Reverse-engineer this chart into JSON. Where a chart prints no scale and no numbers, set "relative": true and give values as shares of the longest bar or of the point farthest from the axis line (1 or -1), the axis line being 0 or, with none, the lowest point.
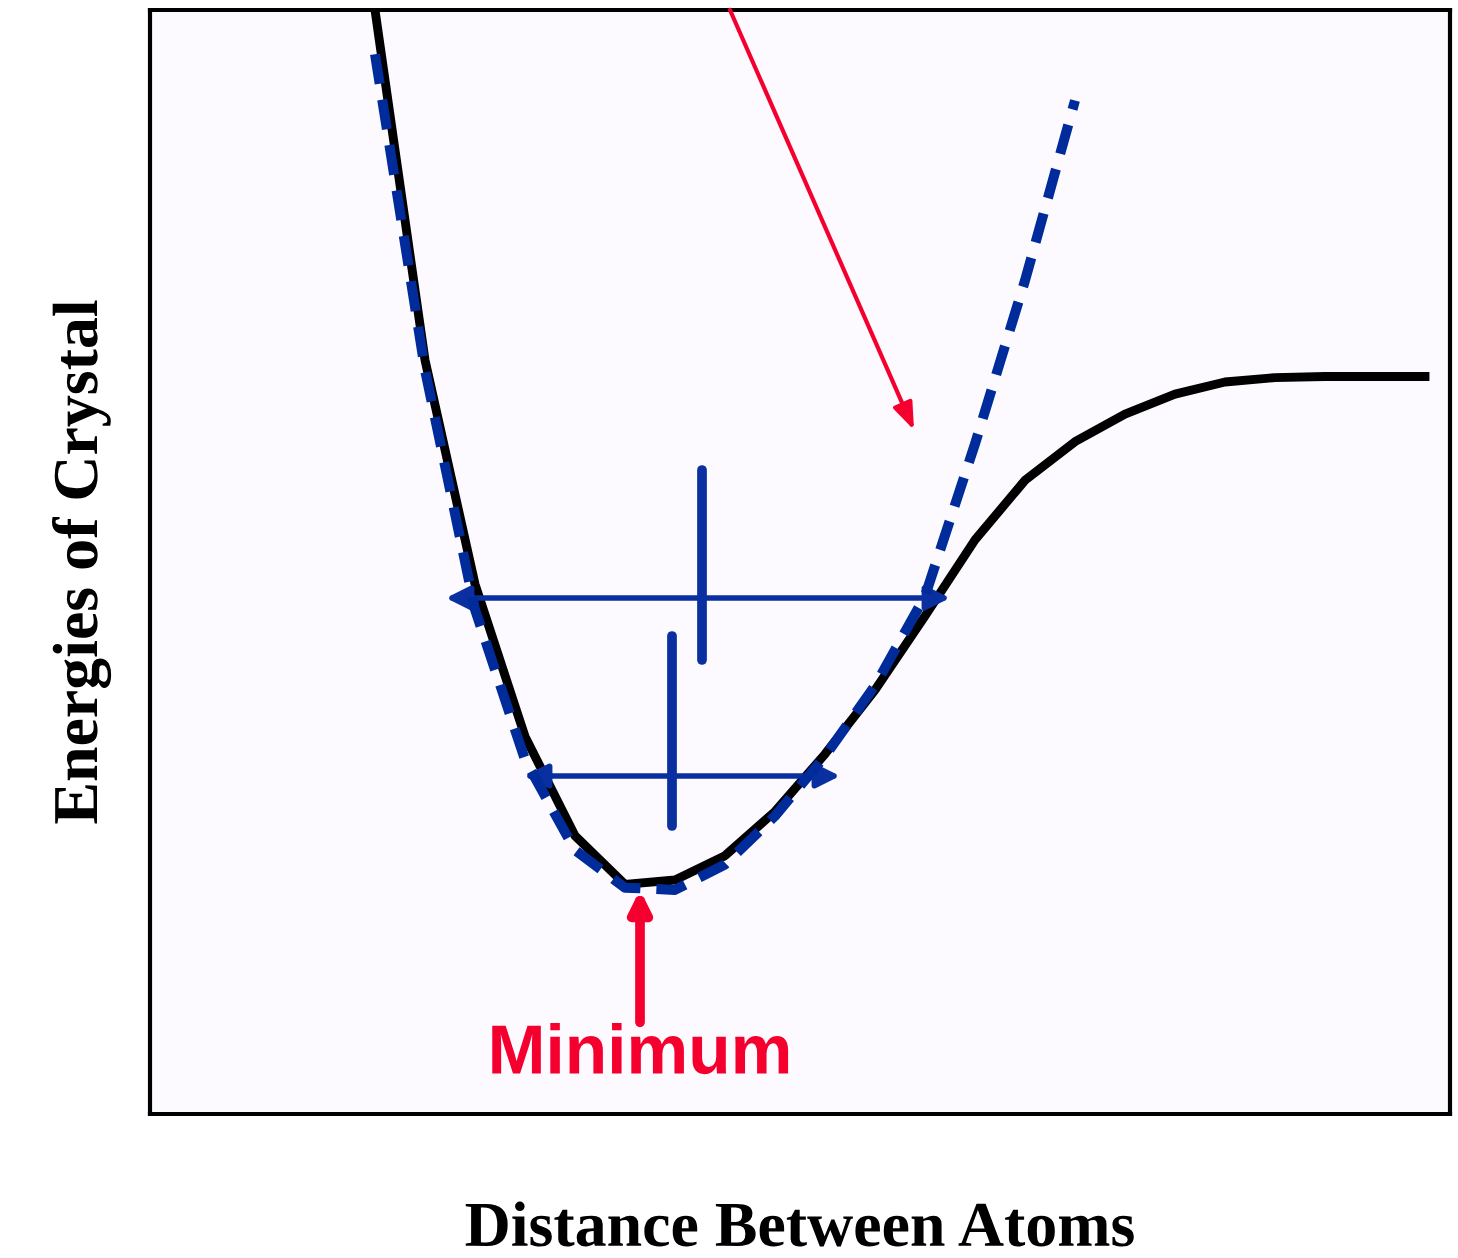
{
  "chart_data": {
    "type": "line",
    "relative": true,
    "xlabel": "Distance Between Atoms",
    "ylabel": "Energies of Crystal",
    "categories": [
      null,
      null,
      null,
      null,
      null,
      null,
      null,
      null,
      null,
      null,
      null,
      null,
      null,
      null,
      null,
      null,
      null,
      null,
      null,
      null,
      null,
      null,
      null,
      null,
      null,
      null
    ],
    "series": [
      {
        "color": "#000000",
        "line_style": "solid",
        "values": [
          null,
          null,
          null,
          null,
          1.0,
          0.683,
          0.48,
          0.342,
          0.252,
          0.208,
          0.212,
          0.234,
          0.274,
          0.326,
          0.384,
          0.451,
          0.52,
          0.574,
          0.609,
          0.634,
          0.652,
          0.663,
          0.667,
          0.668,
          0.668,
          0.668
        ]
      },
      {
        "color": "#002b9a",
        "line_style": "dashed",
        "values": [
          null,
          null,
          null,
          null,
          0.96,
          0.674,
          0.457,
          0.321,
          0.239,
          0.205,
          0.203,
          0.226,
          0.27,
          0.324,
          0.388,
          0.469,
          0.607,
          0.755,
          0.918,
          null,
          null,
          null,
          null,
          null,
          null,
          null
        ]
      }
    ],
    "annotations": [
      {
        "text": "Minimum",
        "y": 0.203
      }
    ],
    "grid": false,
    "legend": false,
    "marker": "none"
  }
}
